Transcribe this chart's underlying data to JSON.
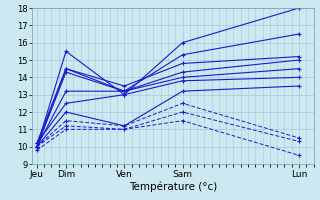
{
  "xlabel": "Température (°c)",
  "xlabels": [
    "Jeu",
    "Dim",
    "Ven",
    "Sam",
    "Lun"
  ],
  "x_positions": [
    0,
    12,
    36,
    60,
    108
  ],
  "ylim": [
    9,
    18
  ],
  "bg_color": "#cce8f0",
  "grid_color": "#a8c8d8",
  "line_color": "#1a1acc",
  "solid_lines": [
    [
      10.0,
      15.5,
      13.0,
      16.0,
      18.0
    ],
    [
      10.0,
      14.5,
      13.2,
      15.3,
      16.5
    ],
    [
      10.2,
      14.5,
      13.5,
      14.8,
      15.2
    ],
    [
      10.0,
      14.3,
      13.2,
      14.3,
      15.0
    ],
    [
      10.0,
      13.2,
      13.2,
      14.0,
      14.5
    ],
    [
      10.2,
      12.5,
      13.0,
      13.8,
      14.0
    ],
    [
      10.0,
      12.0,
      11.2,
      13.2,
      13.5
    ]
  ],
  "dashed_lines": [
    [
      10.0,
      11.5,
      11.2,
      12.5,
      10.5
    ],
    [
      10.0,
      11.2,
      11.0,
      12.0,
      10.3
    ],
    [
      9.8,
      11.0,
      11.0,
      11.5,
      9.5
    ]
  ]
}
